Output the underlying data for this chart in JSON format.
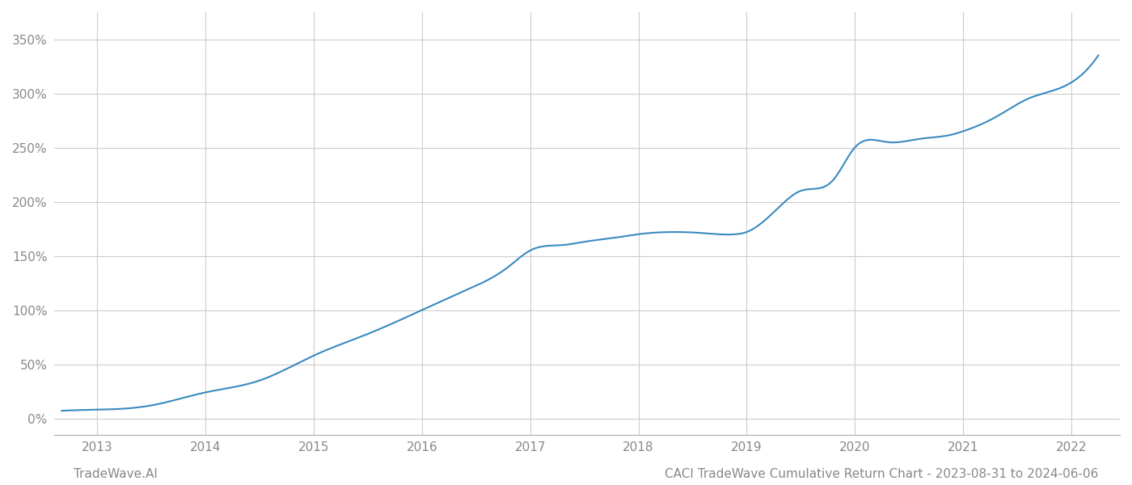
{
  "title": "CACI TradeWave Cumulative Return Chart - 2023-08-31 to 2024-06-06",
  "watermark": "TradeWave.AI",
  "line_color": "#3a8abf",
  "line_width": 1.5,
  "background_color": "#ffffff",
  "grid_color": "#cccccc",
  "x_years": [
    2013,
    2014,
    2015,
    2016,
    2017,
    2018,
    2019,
    2020,
    2021,
    2022
  ],
  "y_ticks": [
    0,
    50,
    100,
    150,
    200,
    250,
    300,
    350
  ],
  "xlim": [
    2012.6,
    2022.45
  ],
  "ylim": [
    -15,
    375
  ],
  "key_x": [
    2012.67,
    2013.0,
    2013.5,
    2014.0,
    2014.5,
    2015.0,
    2015.5,
    2016.0,
    2016.4,
    2016.8,
    2017.0,
    2017.3,
    2017.5,
    2017.8,
    2018.0,
    2018.3,
    2018.6,
    2018.9,
    2019.0,
    2019.3,
    2019.5,
    2019.8,
    2020.0,
    2020.3,
    2020.6,
    2020.9,
    2021.0,
    2021.3,
    2021.6,
    2021.9,
    2022.0,
    2022.25
  ],
  "key_y": [
    7,
    8,
    12,
    24,
    35,
    58,
    78,
    100,
    118,
    140,
    155,
    160,
    163,
    167,
    170,
    172,
    171,
    170,
    172,
    195,
    210,
    220,
    250,
    255,
    258,
    262,
    265,
    278,
    295,
    305,
    310,
    335
  ]
}
